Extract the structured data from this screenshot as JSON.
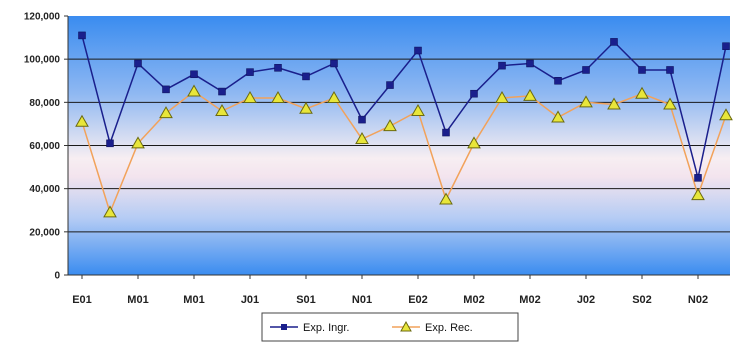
{
  "chart_data": {
    "type": "line",
    "title": "",
    "xlabel": "",
    "ylabel": "",
    "ylim": [
      0,
      120000
    ],
    "yticks": [
      "0",
      "20,000",
      "40,000",
      "60,000",
      "80,000",
      "100,000",
      "120,000"
    ],
    "x_tick_labels": [
      "E01",
      "M01",
      "M01",
      "J01",
      "S01",
      "N01",
      "E02",
      "M02",
      "M02",
      "J02",
      "S02",
      "N02"
    ],
    "x_tick_every": 2,
    "num_points": 24,
    "grid": true,
    "legend_position": "bottom",
    "series": [
      {
        "name": "Exp. Ingr.",
        "color": "#1a1f8c",
        "marker": "square",
        "values": [
          111000,
          61000,
          98000,
          86000,
          93000,
          85000,
          94000,
          96000,
          92000,
          98000,
          72000,
          88000,
          104000,
          66000,
          84000,
          97000,
          98000,
          90000,
          95000,
          108000,
          95000,
          95000,
          45000,
          106000
        ]
      },
      {
        "name": "Exp. Rec.",
        "color": "#f2a25a",
        "marker": "triangle",
        "values": [
          71000,
          29000,
          61000,
          75000,
          85000,
          76000,
          82000,
          82000,
          77000,
          82000,
          63000,
          69000,
          76000,
          35000,
          61000,
          82000,
          83000,
          73000,
          80000,
          79000,
          84000,
          79000,
          37000,
          74000
        ]
      }
    ]
  }
}
